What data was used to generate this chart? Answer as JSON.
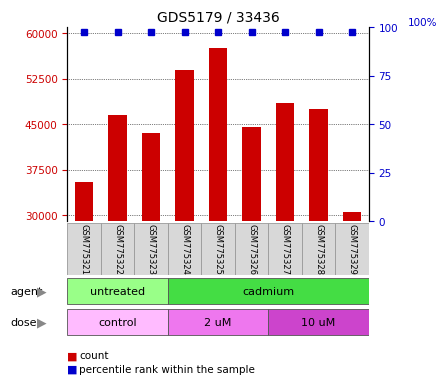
{
  "title": "GDS5179 / 33436",
  "samples": [
    "GSM775321",
    "GSM775322",
    "GSM775323",
    "GSM775324",
    "GSM775325",
    "GSM775326",
    "GSM775327",
    "GSM775328",
    "GSM775329"
  ],
  "counts": [
    35500,
    46500,
    43500,
    54000,
    57500,
    44500,
    48500,
    47500,
    30500
  ],
  "ylim_left": [
    29000,
    61000
  ],
  "yticks_left": [
    30000,
    37500,
    45000,
    52500,
    60000
  ],
  "yticks_right": [
    0,
    25,
    50,
    75,
    100
  ],
  "bar_color": "#cc0000",
  "dot_color": "#0000cc",
  "bar_bottom": 29000,
  "agent_groups": [
    {
      "label": "untreated",
      "start": 0,
      "end": 3,
      "color": "#99ff88"
    },
    {
      "label": "cadmium",
      "start": 3,
      "end": 9,
      "color": "#44dd44"
    }
  ],
  "dose_groups": [
    {
      "label": "control",
      "start": 0,
      "end": 3,
      "color": "#ffbbff"
    },
    {
      "label": "2 uM",
      "start": 3,
      "end": 6,
      "color": "#ee77ee"
    },
    {
      "label": "10 uM",
      "start": 6,
      "end": 9,
      "color": "#cc44cc"
    }
  ],
  "legend_count_color": "#cc0000",
  "legend_pct_color": "#0000cc",
  "tick_label_color_left": "#cc0000",
  "tick_label_color_right": "#0000cc",
  "background_color": "#ffffff",
  "sample_box_color": "#d8d8d8"
}
